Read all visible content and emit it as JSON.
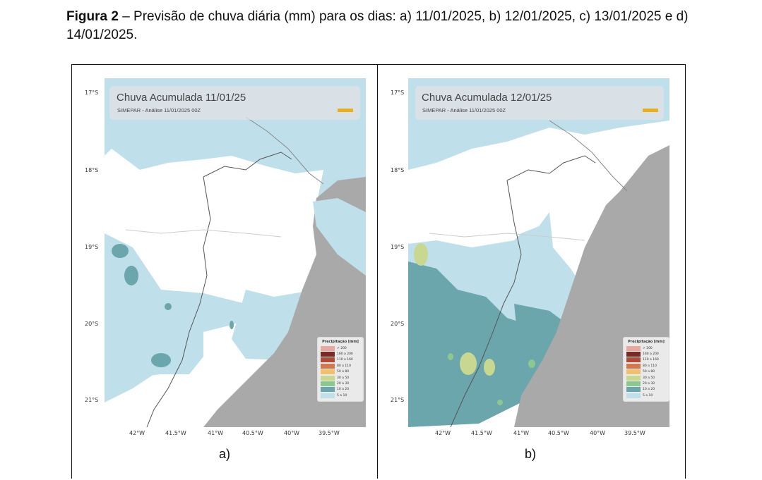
{
  "caption": {
    "bold": "Figura 2",
    "text": " – Previsão de chuva diária (mm) para os dias: a) 11/01/2025, b) 12/01/2025, c) 13/01/2025 e d) 14/01/2025."
  },
  "lat_ticks": [
    "17°S",
    "18°S",
    "19°S",
    "20°S",
    "21°S"
  ],
  "lon_ticks": [
    "42°W",
    "41.5°W",
    "41°W",
    "40.5°W",
    "40°W",
    "39.5°W"
  ],
  "panels": [
    {
      "label": "a)",
      "title": "Chuva Acumulada 11/01/25",
      "subtitle": "SIMEPAR  -  Análise 11/01/2025 00Z"
    },
    {
      "label": "b)",
      "title": "Chuva Acumulada 12/01/25",
      "subtitle": "SIMEPAR  -  Análise 11/01/2025 00Z"
    }
  ],
  "legend": {
    "title": "Precipitação [mm]",
    "items": [
      {
        "label": "> 200",
        "color": "#e8a8a0"
      },
      {
        "label": "160 a 200",
        "color": "#7a2a22"
      },
      {
        "label": "110 a 160",
        "color": "#b04a38"
      },
      {
        "label": "80 a 110",
        "color": "#d2784e"
      },
      {
        "label": "50 a 80",
        "color": "#f0c070"
      },
      {
        "label": "30 a 50",
        "color": "#c8d890"
      },
      {
        "label": "20 a 30",
        "color": "#8cc890"
      },
      {
        "label": "10 a 20",
        "color": "#6aa6ac"
      },
      {
        "label": "5 a 10",
        "color": "#bfe0ea"
      }
    ]
  },
  "colors": {
    "ocean": "#a9a9a9",
    "rain_light": "#bfe0ea",
    "rain_mid": "#6aa6ac",
    "rain_green": "#8cc890",
    "rain_yellowgreen": "#c8d890"
  }
}
